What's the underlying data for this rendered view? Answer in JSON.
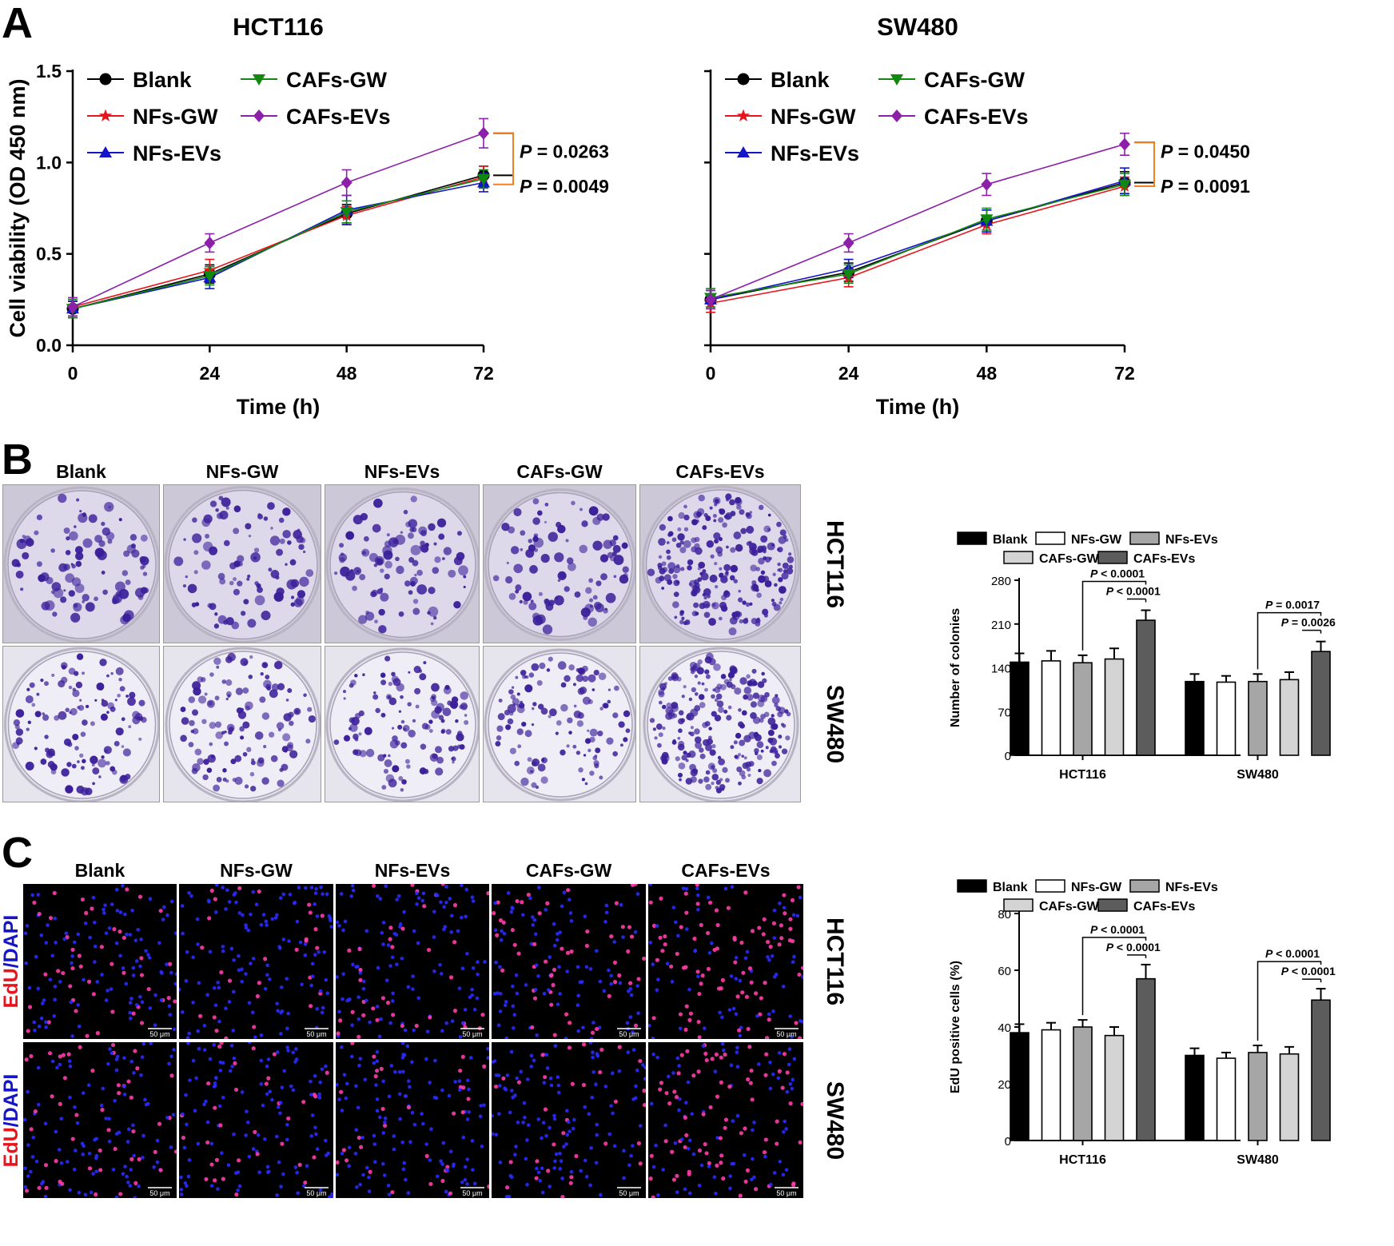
{
  "panels": {
    "a": "A",
    "b": "B",
    "c": "C"
  },
  "colors": {
    "Blank": "#000000",
    "NFs-GW": "#e8141b",
    "NFs-EVs": "#1414c8",
    "CAFs-GW": "#108810",
    "CAFs-EVs": "#8c20a8",
    "bracket_black": "#000000",
    "bracket_orange": "#f08020",
    "bar_Blank": "#000000",
    "bar_NFs-GW": "#ffffff",
    "bar_NFs-EVs": "#a6a6a6",
    "bar_CAFs-GW": "#d4d4d4",
    "bar_CAFs-EVs": "#5c5c5c",
    "colony_stain": "#3d1f9e",
    "edu": "#ff2d6e",
    "dapi": "#2020ff"
  },
  "panel_b_images": {
    "column_labels": [
      "Blank",
      "NFs-GW",
      "NFs-EVs",
      "CAFs-GW",
      "CAFs-EVs"
    ],
    "row_labels": [
      "HCT116",
      "SW480"
    ]
  },
  "panel_c_images": {
    "column_labels": [
      "Blank",
      "NFs-GW",
      "NFs-EVs",
      "CAFs-GW",
      "CAFs-EVs"
    ],
    "row_labels": [
      "HCT116",
      "SW480"
    ],
    "stain_label_edu": "EdU",
    "stain_label_sep": "/",
    "stain_label_dapi": "DAPI",
    "scale_bar": "50 μm"
  },
  "chart_data": [
    {
      "id": "a_hct116",
      "type": "line",
      "title": "HCT116",
      "xlabel": "Time (h)",
      "ylabel": "Cell viability (OD 450 nm)",
      "x": [
        0,
        24,
        48,
        72
      ],
      "xlim": [
        0,
        72
      ],
      "ylim": [
        0,
        1.5
      ],
      "yticks": [
        "0.0",
        "0.5",
        "1.0",
        "1.5"
      ],
      "xticks": [
        "0",
        "24",
        "48",
        "72"
      ],
      "legend": "top-left, two columns",
      "series": [
        {
          "name": "Blank",
          "marker": "circle",
          "values": [
            0.2,
            0.39,
            0.72,
            0.93
          ],
          "err": [
            0.04,
            0.05,
            0.05,
            0.05
          ]
        },
        {
          "name": "NFs-GW",
          "marker": "star",
          "values": [
            0.21,
            0.41,
            0.71,
            0.92
          ],
          "err": [
            0.05,
            0.06,
            0.05,
            0.06
          ]
        },
        {
          "name": "NFs-EVs",
          "marker": "triangle-up",
          "values": [
            0.2,
            0.37,
            0.74,
            0.89
          ],
          "err": [
            0.04,
            0.06,
            0.08,
            0.05
          ]
        },
        {
          "name": "CAFs-GW",
          "marker": "triangle-down",
          "values": [
            0.2,
            0.38,
            0.73,
            0.91
          ],
          "err": [
            0.05,
            0.05,
            0.06,
            0.05
          ]
        },
        {
          "name": "CAFs-EVs",
          "marker": "diamond",
          "values": [
            0.21,
            0.56,
            0.89,
            1.16
          ],
          "err": [
            0.05,
            0.05,
            0.07,
            0.08
          ]
        }
      ],
      "annotations": [
        {
          "p_label": "P",
          "p_text": " = 0.0263",
          "from": 1.16,
          "to": 0.93,
          "color": "bracket_black"
        },
        {
          "p_label": "P",
          "p_text": " = 0.0049",
          "from": 1.16,
          "to": 0.88,
          "color": "bracket_orange"
        }
      ]
    },
    {
      "id": "a_sw480",
      "type": "line",
      "title": "SW480",
      "xlabel": "Time (h)",
      "ylabel": "Cell viability (OD 450 nm)",
      "x": [
        0,
        24,
        48,
        72
      ],
      "xlim": [
        0,
        72
      ],
      "ylim": [
        0,
        1.5
      ],
      "yticks": [
        "0.0",
        "0.5",
        "1.0",
        "1.5"
      ],
      "xticks": [
        "0",
        "24",
        "48",
        "72"
      ],
      "legend": "top-left, two columns",
      "series": [
        {
          "name": "Blank",
          "marker": "circle",
          "values": [
            0.25,
            0.4,
            0.68,
            0.89
          ],
          "err": [
            0.05,
            0.05,
            0.06,
            0.06
          ]
        },
        {
          "name": "NFs-GW",
          "marker": "star",
          "values": [
            0.23,
            0.37,
            0.66,
            0.87
          ],
          "err": [
            0.05,
            0.05,
            0.05,
            0.05
          ]
        },
        {
          "name": "NFs-EVs",
          "marker": "triangle-up",
          "values": [
            0.25,
            0.42,
            0.68,
            0.9
          ],
          "err": [
            0.05,
            0.05,
            0.06,
            0.07
          ]
        },
        {
          "name": "CAFs-GW",
          "marker": "triangle-down",
          "values": [
            0.26,
            0.39,
            0.69,
            0.88
          ],
          "err": [
            0.05,
            0.05,
            0.06,
            0.06
          ]
        },
        {
          "name": "CAFs-EVs",
          "marker": "diamond",
          "values": [
            0.25,
            0.56,
            0.88,
            1.1
          ],
          "err": [
            0.05,
            0.05,
            0.06,
            0.06
          ]
        }
      ],
      "annotations": [
        {
          "p_label": "P",
          "p_text": " = 0.0450",
          "from": 1.11,
          "to": 0.89,
          "color": "bracket_black"
        },
        {
          "p_label": "P",
          "p_text": " = 0.0091",
          "from": 1.11,
          "to": 0.87,
          "color": "bracket_orange"
        }
      ]
    },
    {
      "id": "b_colonies",
      "type": "bar",
      "title": "",
      "xlabel": "",
      "ylabel": "Number of colonies",
      "categories": [
        "HCT116",
        "SW480"
      ],
      "ylim": [
        0,
        280
      ],
      "yticks": [
        "0",
        "70",
        "140",
        "210",
        "280"
      ],
      "legend": "top, two rows",
      "series": [
        {
          "name": "Blank",
          "values": [
            149,
            118
          ],
          "err": [
            14,
            12
          ]
        },
        {
          "name": "NFs-GW",
          "values": [
            151,
            117
          ],
          "err": [
            16,
            10
          ]
        },
        {
          "name": "NFs-EVs",
          "values": [
            148,
            118
          ],
          "err": [
            12,
            12
          ]
        },
        {
          "name": "CAFs-GW",
          "values": [
            154,
            121
          ],
          "err": [
            17,
            12
          ]
        },
        {
          "name": "CAFs-EVs",
          "values": [
            216,
            166
          ],
          "err": [
            16,
            16
          ]
        }
      ],
      "annotations": [
        {
          "group": 0,
          "p_label": "P",
          "p_text": " < 0.0001",
          "from_series": 2,
          "to_series": 4,
          "level": 0,
          "underline": false
        },
        {
          "group": 0,
          "p_label": "P",
          "p_text": " < 0.0001",
          "from_series": 3,
          "to_series": 4,
          "level": 1,
          "underline": true
        },
        {
          "group": 1,
          "p_label": "P",
          "p_text": " = 0.0017",
          "from_series": 2,
          "to_series": 4,
          "level": 0,
          "underline": false
        },
        {
          "group": 1,
          "p_label": "P",
          "p_text": " = 0.0026",
          "from_series": 3,
          "to_series": 4,
          "level": 1,
          "underline": true
        }
      ]
    },
    {
      "id": "c_edu",
      "type": "bar",
      "title": "",
      "xlabel": "",
      "ylabel": "EdU positive cells (%)",
      "categories": [
        "HCT116",
        "SW480"
      ],
      "ylim": [
        0,
        80
      ],
      "yticks": [
        "0",
        "20",
        "40",
        "60",
        "80"
      ],
      "legend": "top, two rows",
      "series": [
        {
          "name": "Blank",
          "values": [
            38,
            30
          ],
          "err": [
            3,
            2.5
          ]
        },
        {
          "name": "NFs-GW",
          "values": [
            39,
            29
          ],
          "err": [
            2.5,
            2
          ]
        },
        {
          "name": "NFs-EVs",
          "values": [
            40,
            31
          ],
          "err": [
            2.5,
            2.5
          ]
        },
        {
          "name": "CAFs-GW",
          "values": [
            37,
            30.5
          ],
          "err": [
            3,
            2.5
          ]
        },
        {
          "name": "CAFs-EVs",
          "values": [
            57,
            49.5
          ],
          "err": [
            5,
            4
          ]
        }
      ],
      "annotations": [
        {
          "group": 0,
          "p_label": "P",
          "p_text": " < 0.0001",
          "from_series": 2,
          "to_series": 4,
          "level": 0,
          "underline": false
        },
        {
          "group": 0,
          "p_label": "P",
          "p_text": " < 0.0001",
          "from_series": 3,
          "to_series": 4,
          "level": 1,
          "underline": true
        },
        {
          "group": 1,
          "p_label": "P",
          "p_text": " < 0.0001",
          "from_series": 2,
          "to_series": 4,
          "level": 0,
          "underline": false
        },
        {
          "group": 1,
          "p_label": "P",
          "p_text": " < 0.0001",
          "from_series": 3,
          "to_series": 4,
          "level": 1,
          "underline": true
        }
      ]
    }
  ]
}
